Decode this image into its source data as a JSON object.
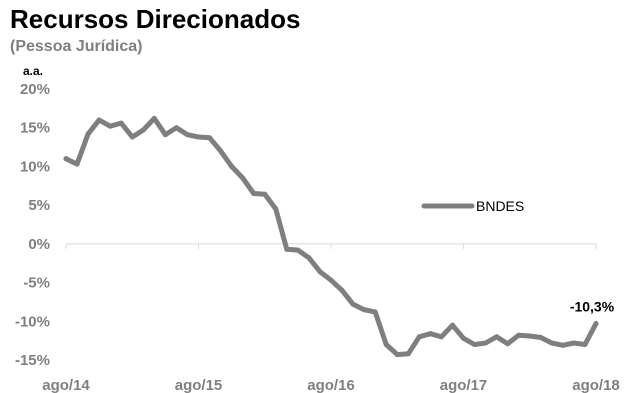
{
  "chart_data": {
    "type": "line",
    "title": "Recursos Direcionados",
    "subtitle": "(Pessoa Jurídica)",
    "ylabel": "a.a.",
    "ylim": [
      -15,
      20
    ],
    "yticks": [
      "20%",
      "15%",
      "10%",
      "5%",
      "0%",
      "-5%",
      "-10%",
      "-15%"
    ],
    "xticks": [
      "ago/14",
      "ago/15",
      "ago/16",
      "ago/17",
      "ago/18"
    ],
    "legend": {
      "position": "right",
      "entries": [
        "BNDES"
      ]
    },
    "series": [
      {
        "name": "BNDES",
        "color": "#7f7f7f",
        "x": [
          "ago/14",
          "set/14",
          "out/14",
          "nov/14",
          "dez/14",
          "jan/15",
          "fev/15",
          "mar/15",
          "abr/15",
          "mai/15",
          "jun/15",
          "jul/15",
          "ago/15",
          "set/15",
          "out/15",
          "nov/15",
          "dez/15",
          "jan/16",
          "fev/16",
          "mar/16",
          "abr/16",
          "mai/16",
          "jun/16",
          "jul/16",
          "ago/16",
          "set/16",
          "out/16",
          "nov/16",
          "dez/16",
          "jan/17",
          "fev/17",
          "mar/17",
          "abr/17",
          "mai/17",
          "jun/17",
          "jul/17",
          "ago/17",
          "set/17",
          "out/17",
          "nov/17",
          "dez/17",
          "jan/18",
          "fev/18",
          "mar/18",
          "abr/18",
          "mai/18",
          "jun/18",
          "jul/18",
          "ago/18"
        ],
        "values": [
          11.0,
          10.3,
          14.2,
          16.0,
          15.2,
          15.6,
          13.8,
          14.7,
          16.2,
          14.1,
          15.0,
          14.1,
          13.8,
          13.7,
          12.0,
          10.0,
          8.5,
          6.5,
          6.4,
          4.5,
          -0.7,
          -0.8,
          -1.8,
          -3.6,
          -4.7,
          -6.0,
          -7.8,
          -8.5,
          -8.8,
          -13.0,
          -14.3,
          -14.2,
          -12.0,
          -11.6,
          -12.0,
          -10.5,
          -12.2,
          -13.0,
          -12.8,
          -12.0,
          -12.9,
          -11.8,
          -11.9,
          -12.1,
          -12.8,
          -13.1,
          -12.8,
          -13.0,
          -10.3
        ]
      }
    ],
    "annotations": [
      {
        "x": "ago/18",
        "value": -10.3,
        "text": "-10,3%"
      }
    ],
    "grid": false
  }
}
